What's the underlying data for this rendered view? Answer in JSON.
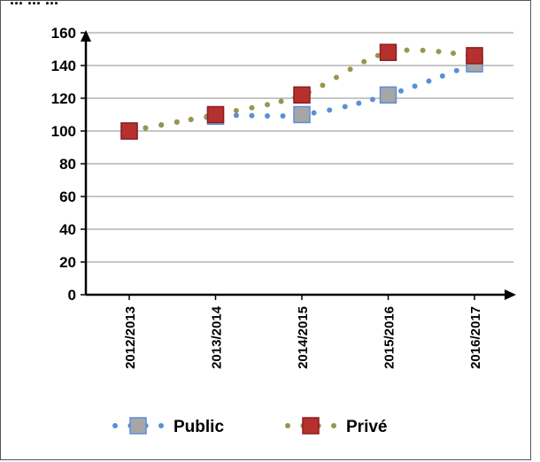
{
  "chart_data": {
    "type": "line",
    "title": "",
    "title_cropped_fragment": "... ... ...",
    "xlabel": "",
    "ylabel": "",
    "categories": [
      "2012/2013",
      "2013/2014",
      "2014/2015",
      "2015/2016",
      "2016/2017"
    ],
    "ylim": [
      0,
      160
    ],
    "yticks": [
      0,
      20,
      40,
      60,
      80,
      100,
      120,
      140,
      160
    ],
    "grid": true,
    "legend_position": "bottom",
    "series": [
      {
        "name": "Public",
        "values": [
          100,
          109,
          110,
          122,
          141
        ],
        "line_style": "dotted",
        "line_color": "#5b8fd6",
        "marker": "square",
        "marker_fill": "#a6a6a6",
        "marker_edge": "#5b8fd6"
      },
      {
        "name": "Privé",
        "values": [
          100,
          110,
          122,
          148,
          146
        ],
        "line_style": "dotted",
        "line_color": "#9a9450",
        "marker": "square",
        "marker_fill": "#b5302e",
        "marker_edge": "#8b1f1c"
      }
    ]
  }
}
